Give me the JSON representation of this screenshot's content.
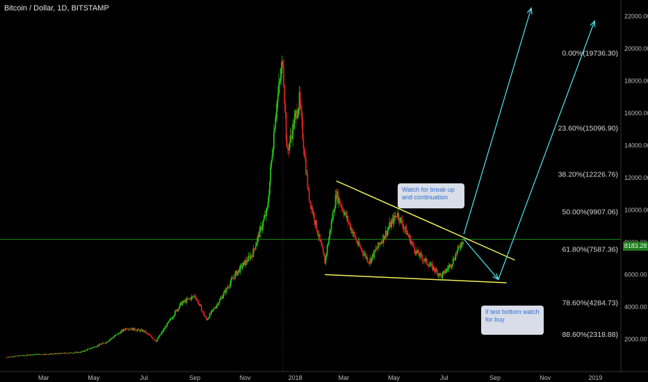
{
  "title": "Bitcoin / Dollar, 1D, BITSTAMP",
  "last_price": "8183.28",
  "callouts": {
    "breakout": "Watch for break up and continuation",
    "bottom": "if test bottom watch for buy"
  },
  "colors": {
    "background": "#000000",
    "up": "#22c414",
    "down": "#d92121",
    "trendline": "#f5f05a",
    "projection": "#4ddbe3",
    "price_line": "#1f8f1f",
    "callout_bg": "#d9dde8",
    "callout_text": "#2f6fcf"
  },
  "chart_data": {
    "type": "candlestick",
    "title": "Bitcoin / Dollar, 1D, BITSTAMP",
    "x_ticks": [
      "Mar",
      "May",
      "Jul",
      "Sep",
      "Nov",
      "2018",
      "Mar",
      "May",
      "Jul",
      "Sep",
      "Nov",
      "2019"
    ],
    "y_ticks": [
      "2000.00",
      "4000.00",
      "6000.00",
      "8000.00",
      "10000.00",
      "12000.00",
      "14000.00",
      "16000.00",
      "18000.00",
      "20000.00",
      "22000.00"
    ],
    "ylim": [
      0,
      23000
    ],
    "last_price": 8183.28,
    "fibonacci_levels": [
      {
        "label": "0.00%(19736.30)",
        "value": 19736.3
      },
      {
        "label": "23.60%(15096.90)",
        "value": 15096.9
      },
      {
        "label": "38.20%(12226.76)",
        "value": 12226.76
      },
      {
        "label": "50.00%(9907.06)",
        "value": 9907.06
      },
      {
        "label": "61.80%(7587.36)",
        "value": 7587.36
      },
      {
        "label": "78.60%(4284.73)",
        "value": 4284.73
      },
      {
        "label": "88.60%(2318.88)",
        "value": 2318.88
      }
    ],
    "price_path": [
      [
        "2017-01-15",
        900
      ],
      [
        "2017-02-15",
        1050
      ],
      [
        "2017-03-15",
        1100
      ],
      [
        "2017-04-15",
        1200
      ],
      [
        "2017-05-15",
        1800
      ],
      [
        "2017-06-10",
        2700
      ],
      [
        "2017-07-01",
        2500
      ],
      [
        "2017-07-16",
        1900
      ],
      [
        "2017-08-15",
        4200
      ],
      [
        "2017-09-01",
        4700
      ],
      [
        "2017-09-15",
        3200
      ],
      [
        "2017-10-01",
        4400
      ],
      [
        "2017-10-20",
        6000
      ],
      [
        "2017-11-10",
        7300
      ],
      [
        "2017-11-28",
        10000
      ],
      [
        "2017-12-08",
        16000
      ],
      [
        "2017-12-17",
        19300
      ],
      [
        "2017-12-22",
        13500
      ],
      [
        "2018-01-06",
        16800
      ],
      [
        "2018-01-17",
        11000
      ],
      [
        "2018-02-06",
        6800
      ],
      [
        "2018-02-20",
        11000
      ],
      [
        "2018-03-18",
        7900
      ],
      [
        "2018-04-01",
        6800
      ],
      [
        "2018-05-05",
        9800
      ],
      [
        "2018-05-28",
        7400
      ],
      [
        "2018-06-28",
        5900
      ],
      [
        "2018-07-10",
        6700
      ],
      [
        "2018-07-24",
        8183.28
      ]
    ],
    "trendlines": [
      {
        "kind": "resistance",
        "from": [
          "2018-02-20",
          11800
        ],
        "to": [
          "2018-09-25",
          6900
        ]
      },
      {
        "kind": "support",
        "from": [
          "2018-02-06",
          6000
        ],
        "to": [
          "2018-09-15",
          5500
        ]
      }
    ],
    "projections": [
      {
        "from": [
          "2018-07-25",
          8500
        ],
        "to": [
          "2018-10-15",
          22500
        ]
      },
      {
        "from": [
          "2018-07-25",
          8200
        ],
        "to": [
          "2018-09-05",
          5700
        ]
      },
      {
        "from": [
          "2018-09-05",
          5700
        ],
        "to": [
          "2018-12-31",
          21700
        ]
      }
    ]
  }
}
